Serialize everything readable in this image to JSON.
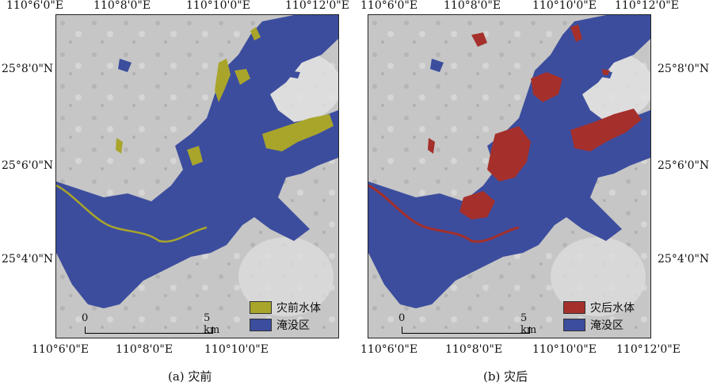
{
  "panels": [
    {
      "id": "a",
      "caption": "(a) 灾前",
      "water_label": "灾前水体",
      "flood_label": "淹没区",
      "water_color": "#a9a52a",
      "flood_color": "#3c4d9e",
      "scale_zero": "0",
      "scale_end": "5 km",
      "top_lon": [
        "110°6'0\"E",
        "110°8'0\"E",
        "110°10'0\"E",
        "110°12'0\"E"
      ],
      "bottom_lon": [
        "110°6'0\"E",
        "110°8'0\"E",
        "110°10'0\"E",
        "110°12'0\"E"
      ],
      "lat": [
        "25°8'0\"N",
        "25°6'0\"N",
        "25°4'0\"N"
      ]
    },
    {
      "id": "b",
      "caption": "(b) 灾后",
      "water_label": "灾后水体",
      "flood_label": "淹没区",
      "water_color": "#a5302b",
      "flood_color": "#3c4d9e",
      "scale_zero": "0",
      "scale_end": "5 km",
      "top_lon": [
        "110°6'0\"E",
        "110°8'0\"E",
        "110°10'0\"E",
        "110°12'0\"E"
      ],
      "bottom_lon": [
        "110°6'0\"E",
        "110°8'0\"E",
        "110°10'0\"E",
        "110°12'0\"E"
      ],
      "lat": [
        "25°8'0\"N",
        "25°6'0\"N",
        "25°4'0\"N"
      ]
    }
  ]
}
